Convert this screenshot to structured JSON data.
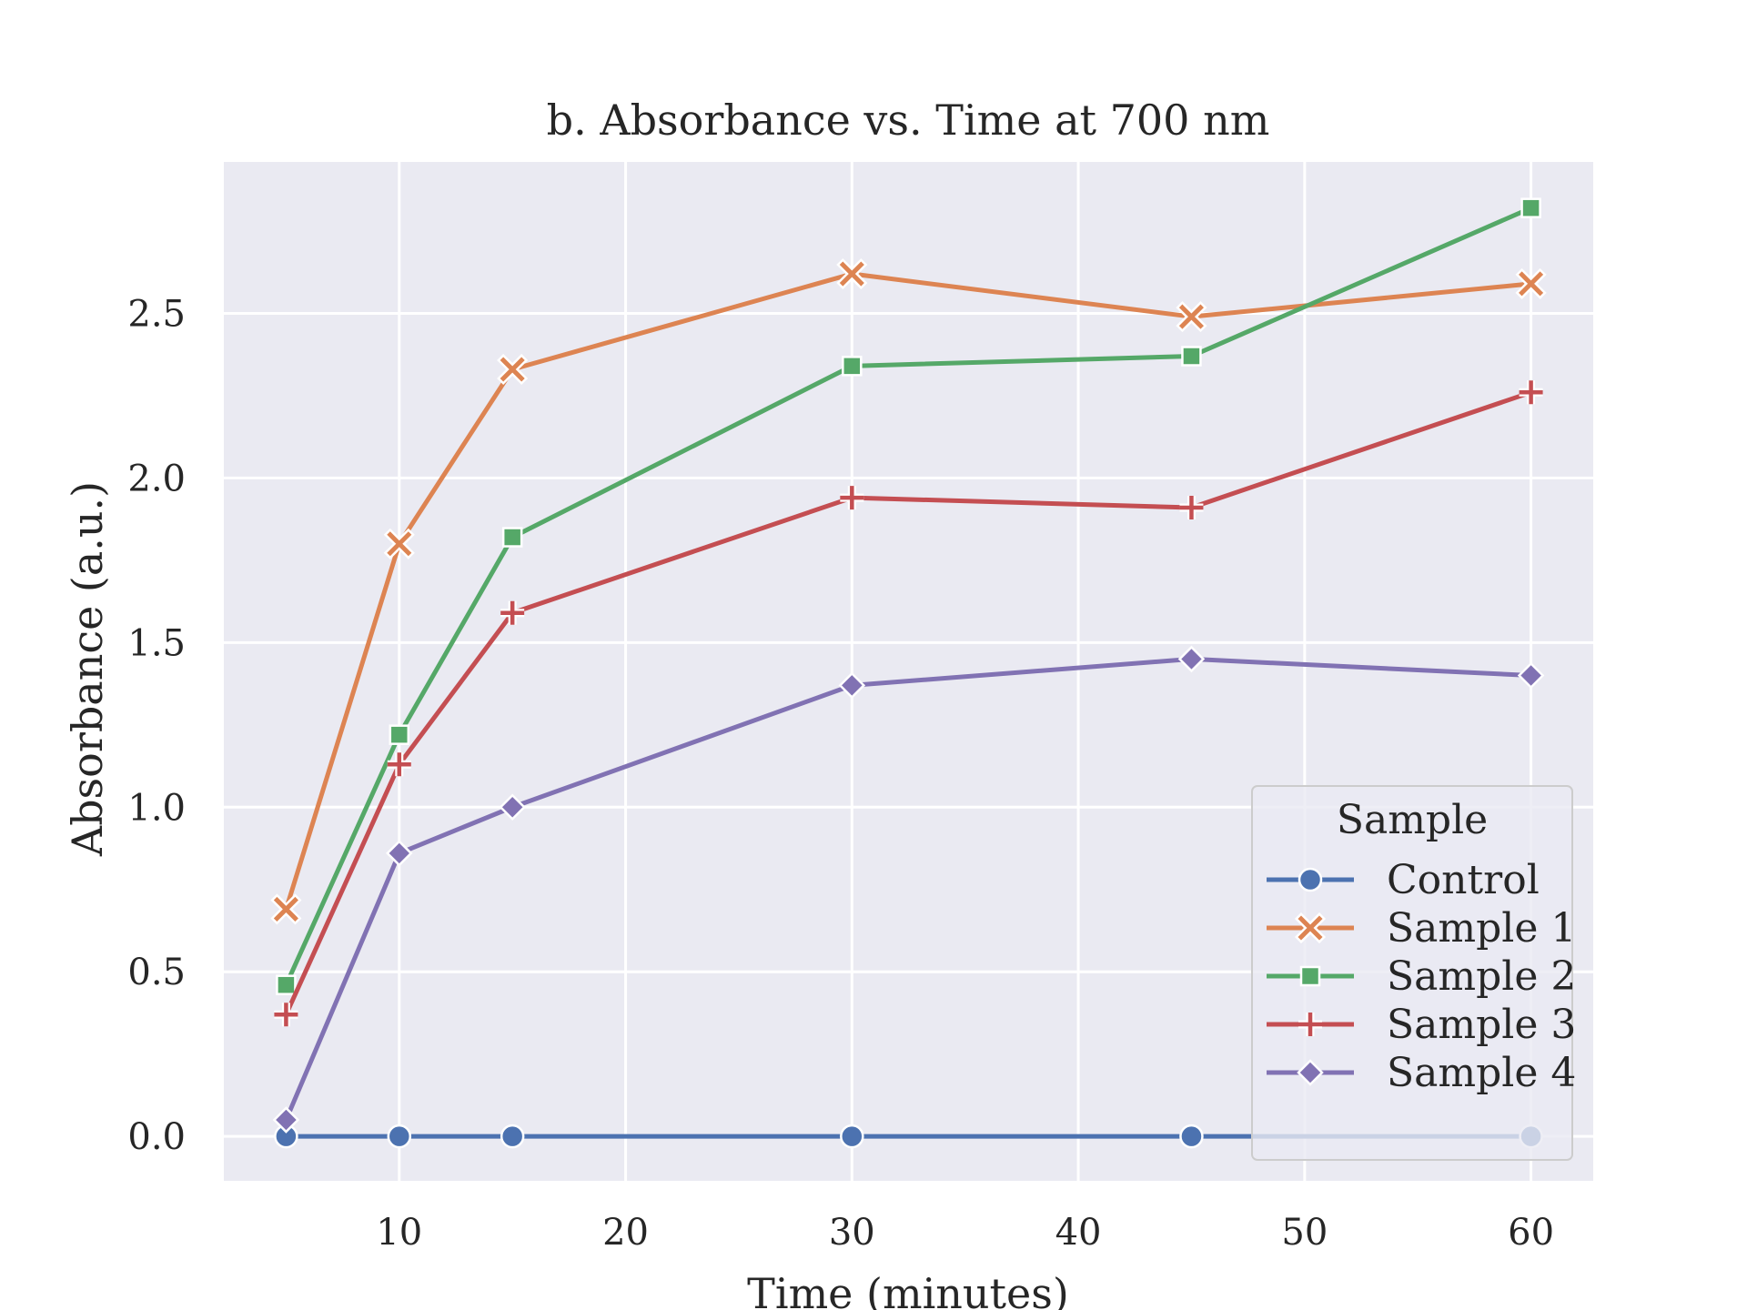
{
  "chart_data": {
    "type": "line",
    "title": "b. Absorbance vs. Time at 700 nm",
    "xlabel": "Time (minutes)",
    "ylabel": "Absorbance (a.u.)",
    "x": [
      5,
      10,
      15,
      30,
      45,
      60
    ],
    "xlim": [
      2.25,
      62.75
    ],
    "ylim": [
      -0.135,
      2.96
    ],
    "xticks": [
      10,
      20,
      30,
      40,
      50,
      60
    ],
    "xtick_labels": [
      "10",
      "20",
      "30",
      "40",
      "50",
      "60"
    ],
    "yticks": [
      0.0,
      0.5,
      1.0,
      1.5,
      2.0,
      2.5
    ],
    "ytick_labels": [
      "0.0",
      "0.5",
      "1.0",
      "1.5",
      "2.0",
      "2.5"
    ],
    "grid": true,
    "background": "#eaeaf2",
    "legend": {
      "title": "Sample",
      "placement": "lower-right"
    },
    "series": [
      {
        "name": "Control",
        "color": "#4c72b0",
        "marker": "circle",
        "values": [
          0.0,
          0.0,
          0.0,
          0.0,
          0.0,
          0.0
        ]
      },
      {
        "name": "Sample 1",
        "color": "#dd8452",
        "marker": "x",
        "values": [
          0.69,
          1.8,
          2.33,
          2.62,
          2.49,
          2.59
        ]
      },
      {
        "name": "Sample 2",
        "color": "#55a868",
        "marker": "square",
        "values": [
          0.46,
          1.22,
          1.82,
          2.34,
          2.37,
          2.82
        ]
      },
      {
        "name": "Sample 3",
        "color": "#c44e52",
        "marker": "plus",
        "values": [
          0.37,
          1.13,
          1.59,
          1.94,
          1.91,
          2.26
        ]
      },
      {
        "name": "Sample 4",
        "color": "#8172b3",
        "marker": "diamond",
        "values": [
          0.05,
          0.86,
          1.0,
          1.37,
          1.45,
          1.4
        ]
      }
    ]
  }
}
